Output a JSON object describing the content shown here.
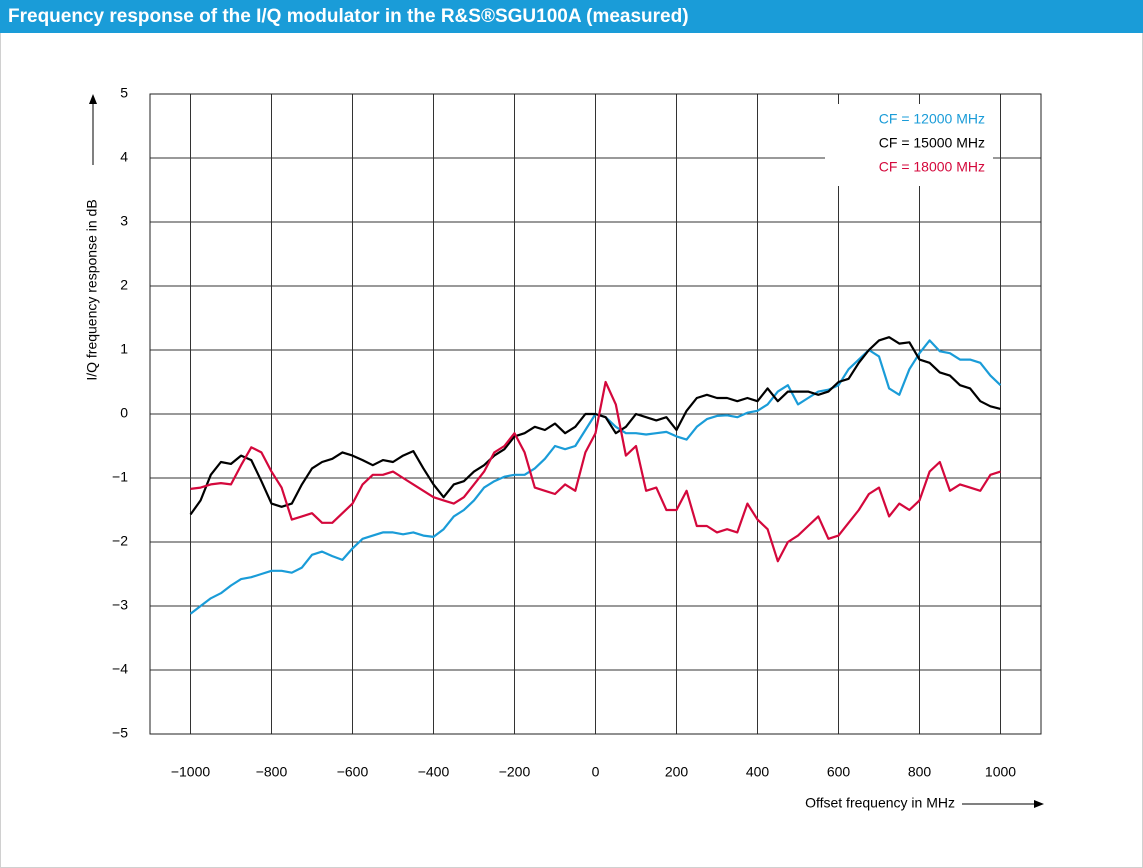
{
  "chart_data": {
    "type": "line",
    "title": "Frequency response of the I/Q modulator in the R&S®SGU100A (measured)",
    "x_label": "Offset frequency in MHz",
    "y_label": "I/Q frequency response in dB",
    "xlim": [
      -1100,
      1100
    ],
    "ylim": [
      -5,
      5
    ],
    "xticks": [
      {
        "value": -1000,
        "label": "−1000"
      },
      {
        "value": -800,
        "label": "−800"
      },
      {
        "value": -600,
        "label": "−600"
      },
      {
        "value": -400,
        "label": "−400"
      },
      {
        "value": -200,
        "label": "−200"
      },
      0,
      200,
      400,
      600,
      800,
      1000
    ],
    "yticks": [
      5,
      4,
      3,
      2,
      1,
      0,
      {
        "value": -1,
        "label": "−1"
      },
      {
        "value": -2,
        "label": "−2"
      },
      {
        "value": -3,
        "label": "−3"
      },
      {
        "value": -4,
        "label": "−4"
      },
      {
        "value": -5,
        "label": "−5"
      }
    ],
    "grid": true,
    "legend": "top-right",
    "x": [
      -1000,
      -975,
      -950,
      -925,
      -900,
      -875,
      -850,
      -825,
      -800,
      -775,
      -750,
      -725,
      -700,
      -675,
      -650,
      -625,
      -600,
      -575,
      -550,
      -525,
      -500,
      -475,
      -450,
      -425,
      -400,
      -375,
      -350,
      -325,
      -300,
      -275,
      -250,
      -225,
      -200,
      -175,
      -150,
      -125,
      -100,
      -75,
      -50,
      -25,
      0,
      25,
      50,
      75,
      100,
      125,
      150,
      175,
      200,
      225,
      250,
      275,
      300,
      325,
      350,
      375,
      400,
      425,
      450,
      475,
      500,
      525,
      550,
      575,
      600,
      625,
      650,
      675,
      700,
      725,
      750,
      775,
      800,
      825,
      850,
      875,
      900,
      925,
      950,
      975,
      1000
    ],
    "series": [
      {
        "name": "CF = 12000 MHz",
        "color": "#1a9cd8",
        "values": [
          -3.12,
          -3.0,
          -2.88,
          -2.8,
          -2.68,
          -2.58,
          -2.55,
          -2.5,
          -2.45,
          -2.45,
          -2.48,
          -2.4,
          -2.2,
          -2.15,
          -2.22,
          -2.28,
          -2.1,
          -1.95,
          -1.9,
          -1.85,
          -1.85,
          -1.88,
          -1.85,
          -1.9,
          -1.92,
          -1.8,
          -1.6,
          -1.5,
          -1.35,
          -1.15,
          -1.05,
          -0.98,
          -0.95,
          -0.95,
          -0.85,
          -0.7,
          -0.5,
          -0.55,
          -0.5,
          -0.25,
          0.0,
          -0.05,
          -0.2,
          -0.3,
          -0.3,
          -0.32,
          -0.3,
          -0.28,
          -0.35,
          -0.4,
          -0.2,
          -0.08,
          -0.03,
          -0.02,
          -0.05,
          0.02,
          0.05,
          0.15,
          0.35,
          0.45,
          0.15,
          0.25,
          0.35,
          0.38,
          0.45,
          0.7,
          0.85,
          1.0,
          0.9,
          0.4,
          0.3,
          0.7,
          0.95,
          1.15,
          0.98,
          0.95,
          0.85,
          0.85,
          0.8,
          0.6,
          0.45
        ]
      },
      {
        "name": "CF = 15000 MHz",
        "color": "#000000",
        "values": [
          -1.57,
          -1.35,
          -0.95,
          -0.75,
          -0.78,
          -0.65,
          -0.72,
          -1.05,
          -1.4,
          -1.45,
          -1.4,
          -1.1,
          -0.85,
          -0.75,
          -0.7,
          -0.6,
          -0.65,
          -0.72,
          -0.8,
          -0.72,
          -0.75,
          -0.65,
          -0.58,
          -0.85,
          -1.1,
          -1.3,
          -1.1,
          -1.05,
          -0.9,
          -0.8,
          -0.65,
          -0.55,
          -0.35,
          -0.3,
          -0.2,
          -0.25,
          -0.15,
          -0.3,
          -0.2,
          0.0,
          0.0,
          -0.05,
          -0.3,
          -0.2,
          0.0,
          -0.05,
          -0.1,
          -0.05,
          -0.25,
          0.05,
          0.25,
          0.3,
          0.25,
          0.25,
          0.2,
          0.25,
          0.2,
          0.4,
          0.2,
          0.35,
          0.35,
          0.35,
          0.3,
          0.35,
          0.5,
          0.55,
          0.8,
          1.0,
          1.15,
          1.2,
          1.1,
          1.12,
          0.85,
          0.8,
          0.65,
          0.6,
          0.45,
          0.4,
          0.2,
          0.12,
          0.08
        ]
      },
      {
        "name": "CF = 18000 MHz",
        "color": "#d4083c",
        "values": [
          -1.17,
          -1.15,
          -1.1,
          -1.08,
          -1.1,
          -0.8,
          -0.52,
          -0.6,
          -0.9,
          -1.15,
          -1.65,
          -1.6,
          -1.55,
          -1.7,
          -1.7,
          -1.55,
          -1.4,
          -1.1,
          -0.95,
          -0.95,
          -0.9,
          -1.0,
          -1.1,
          -1.2,
          -1.3,
          -1.35,
          -1.4,
          -1.3,
          -1.1,
          -0.9,
          -0.6,
          -0.5,
          -0.3,
          -0.6,
          -1.15,
          -1.2,
          -1.25,
          -1.1,
          -1.2,
          -0.6,
          -0.3,
          0.5,
          0.15,
          -0.65,
          -0.5,
          -1.2,
          -1.15,
          -1.5,
          -1.5,
          -1.2,
          -1.75,
          -1.75,
          -1.85,
          -1.8,
          -1.85,
          -1.4,
          -1.65,
          -1.8,
          -2.3,
          -2.0,
          -1.9,
          -1.75,
          -1.6,
          -1.95,
          -1.9,
          -1.7,
          -1.5,
          -1.25,
          -1.15,
          -1.6,
          -1.4,
          -1.5,
          -1.35,
          -0.9,
          -0.75,
          -1.2,
          -1.1,
          -1.15,
          -1.2,
          -0.95,
          -0.9
        ]
      }
    ]
  }
}
